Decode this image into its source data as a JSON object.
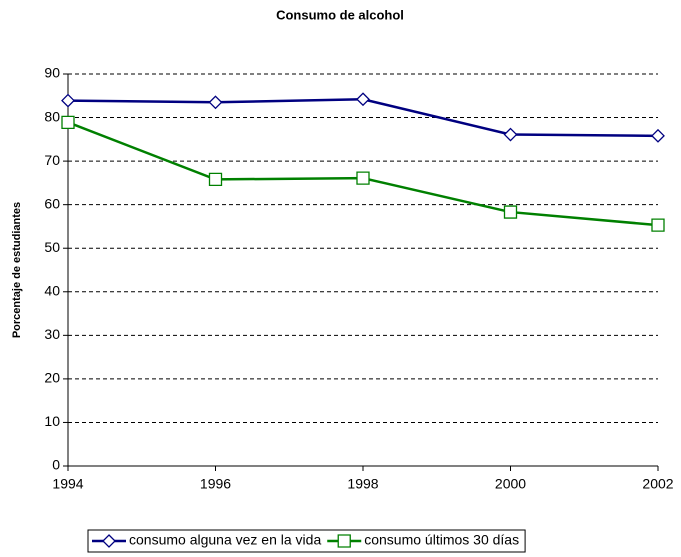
{
  "chart_data": {
    "type": "line",
    "title": "Consumo de alcohol",
    "y_label": "Porcentaje de estudiantes",
    "x": [
      1994,
      1996,
      1998,
      2000,
      2002
    ],
    "xlim": [
      1994,
      2002
    ],
    "xticks": [
      1994,
      1996,
      1998,
      2000,
      2002
    ],
    "ylim": [
      0,
      90
    ],
    "yticks": [
      0,
      10,
      20,
      30,
      40,
      50,
      60,
      70,
      80,
      90
    ],
    "grid": true,
    "legend": "bottom",
    "series": [
      {
        "name": "consumo alguna vez en la vida",
        "color": "#000080",
        "marker": "diamond",
        "values": [
          83.9,
          83.5,
          84.2,
          76.1,
          75.8
        ]
      },
      {
        "name": "consumo últimos 30 días",
        "color": "#008000",
        "marker": "square",
        "values": [
          78.9,
          65.8,
          66.1,
          58.3,
          55.3
        ]
      }
    ]
  }
}
